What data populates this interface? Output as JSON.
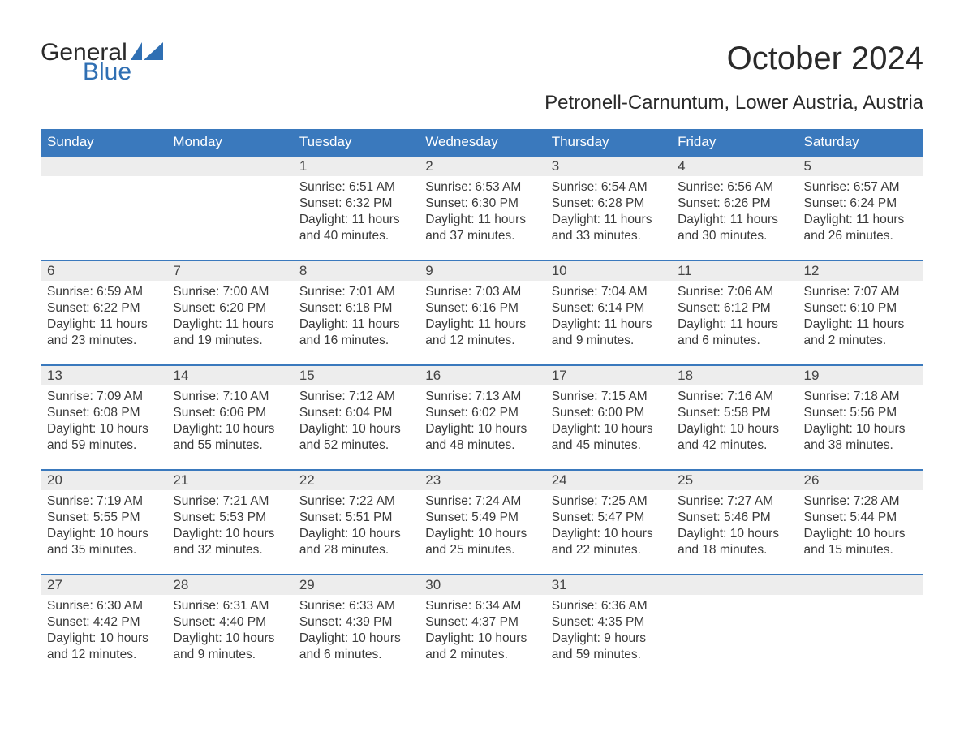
{
  "brand": {
    "line1": "General",
    "line2": "Blue",
    "text_color": "#2a2a2a",
    "accent_color": "#2f6fb3"
  },
  "title": "October 2024",
  "location": "Petronell-Carnuntum, Lower Austria, Austria",
  "colors": {
    "header_bg": "#3a79bd",
    "header_text": "#ffffff",
    "daynum_bg": "#ededed",
    "daynum_border": "#3a79bd",
    "body_text": "#3a3a3a",
    "background": "#ffffff"
  },
  "typography": {
    "title_fontsize": 40,
    "location_fontsize": 24,
    "header_fontsize": 17,
    "daynum_fontsize": 17,
    "cell_fontsize": 15.5
  },
  "day_headers": [
    "Sunday",
    "Monday",
    "Tuesday",
    "Wednesday",
    "Thursday",
    "Friday",
    "Saturday"
  ],
  "weeks": [
    [
      null,
      null,
      {
        "n": "1",
        "sunrise": "6:51 AM",
        "sunset": "6:32 PM",
        "daylight": "11 hours and 40 minutes."
      },
      {
        "n": "2",
        "sunrise": "6:53 AM",
        "sunset": "6:30 PM",
        "daylight": "11 hours and 37 minutes."
      },
      {
        "n": "3",
        "sunrise": "6:54 AM",
        "sunset": "6:28 PM",
        "daylight": "11 hours and 33 minutes."
      },
      {
        "n": "4",
        "sunrise": "6:56 AM",
        "sunset": "6:26 PM",
        "daylight": "11 hours and 30 minutes."
      },
      {
        "n": "5",
        "sunrise": "6:57 AM",
        "sunset": "6:24 PM",
        "daylight": "11 hours and 26 minutes."
      }
    ],
    [
      {
        "n": "6",
        "sunrise": "6:59 AM",
        "sunset": "6:22 PM",
        "daylight": "11 hours and 23 minutes."
      },
      {
        "n": "7",
        "sunrise": "7:00 AM",
        "sunset": "6:20 PM",
        "daylight": "11 hours and 19 minutes."
      },
      {
        "n": "8",
        "sunrise": "7:01 AM",
        "sunset": "6:18 PM",
        "daylight": "11 hours and 16 minutes."
      },
      {
        "n": "9",
        "sunrise": "7:03 AM",
        "sunset": "6:16 PM",
        "daylight": "11 hours and 12 minutes."
      },
      {
        "n": "10",
        "sunrise": "7:04 AM",
        "sunset": "6:14 PM",
        "daylight": "11 hours and 9 minutes."
      },
      {
        "n": "11",
        "sunrise": "7:06 AM",
        "sunset": "6:12 PM",
        "daylight": "11 hours and 6 minutes."
      },
      {
        "n": "12",
        "sunrise": "7:07 AM",
        "sunset": "6:10 PM",
        "daylight": "11 hours and 2 minutes."
      }
    ],
    [
      {
        "n": "13",
        "sunrise": "7:09 AM",
        "sunset": "6:08 PM",
        "daylight": "10 hours and 59 minutes."
      },
      {
        "n": "14",
        "sunrise": "7:10 AM",
        "sunset": "6:06 PM",
        "daylight": "10 hours and 55 minutes."
      },
      {
        "n": "15",
        "sunrise": "7:12 AM",
        "sunset": "6:04 PM",
        "daylight": "10 hours and 52 minutes."
      },
      {
        "n": "16",
        "sunrise": "7:13 AM",
        "sunset": "6:02 PM",
        "daylight": "10 hours and 48 minutes."
      },
      {
        "n": "17",
        "sunrise": "7:15 AM",
        "sunset": "6:00 PM",
        "daylight": "10 hours and 45 minutes."
      },
      {
        "n": "18",
        "sunrise": "7:16 AM",
        "sunset": "5:58 PM",
        "daylight": "10 hours and 42 minutes."
      },
      {
        "n": "19",
        "sunrise": "7:18 AM",
        "sunset": "5:56 PM",
        "daylight": "10 hours and 38 minutes."
      }
    ],
    [
      {
        "n": "20",
        "sunrise": "7:19 AM",
        "sunset": "5:55 PM",
        "daylight": "10 hours and 35 minutes."
      },
      {
        "n": "21",
        "sunrise": "7:21 AM",
        "sunset": "5:53 PM",
        "daylight": "10 hours and 32 minutes."
      },
      {
        "n": "22",
        "sunrise": "7:22 AM",
        "sunset": "5:51 PM",
        "daylight": "10 hours and 28 minutes."
      },
      {
        "n": "23",
        "sunrise": "7:24 AM",
        "sunset": "5:49 PM",
        "daylight": "10 hours and 25 minutes."
      },
      {
        "n": "24",
        "sunrise": "7:25 AM",
        "sunset": "5:47 PM",
        "daylight": "10 hours and 22 minutes."
      },
      {
        "n": "25",
        "sunrise": "7:27 AM",
        "sunset": "5:46 PM",
        "daylight": "10 hours and 18 minutes."
      },
      {
        "n": "26",
        "sunrise": "7:28 AM",
        "sunset": "5:44 PM",
        "daylight": "10 hours and 15 minutes."
      }
    ],
    [
      {
        "n": "27",
        "sunrise": "6:30 AM",
        "sunset": "4:42 PM",
        "daylight": "10 hours and 12 minutes."
      },
      {
        "n": "28",
        "sunrise": "6:31 AM",
        "sunset": "4:40 PM",
        "daylight": "10 hours and 9 minutes."
      },
      {
        "n": "29",
        "sunrise": "6:33 AM",
        "sunset": "4:39 PM",
        "daylight": "10 hours and 6 minutes."
      },
      {
        "n": "30",
        "sunrise": "6:34 AM",
        "sunset": "4:37 PM",
        "daylight": "10 hours and 2 minutes."
      },
      {
        "n": "31",
        "sunrise": "6:36 AM",
        "sunset": "4:35 PM",
        "daylight": "9 hours and 59 minutes."
      },
      null,
      null
    ]
  ],
  "labels": {
    "sunrise_prefix": "Sunrise: ",
    "sunset_prefix": "Sunset: ",
    "daylight_prefix": "Daylight: "
  }
}
